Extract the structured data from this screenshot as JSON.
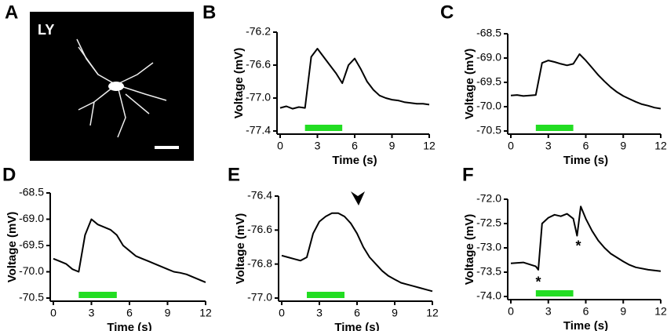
{
  "chart_data": [
    {
      "type": "image",
      "panel": "A",
      "label": "LY"
    },
    {
      "type": "line",
      "panel": "B",
      "xlabel": "Time (s)",
      "ylabel": "Voltage (mV)",
      "x": [
        0,
        0.5,
        1,
        1.5,
        2,
        2.5,
        3,
        3.5,
        4,
        4.5,
        5,
        5.5,
        6,
        6.5,
        7,
        7.5,
        8,
        8.5,
        9,
        9.5,
        10,
        10.5,
        11,
        11.5,
        12
      ],
      "series": [
        {
          "color": "#000000",
          "values": [
            -77.12,
            -77.1,
            -77.13,
            -77.11,
            -77.12,
            -76.5,
            -76.4,
            -76.5,
            -76.6,
            -76.7,
            -76.82,
            -76.6,
            -76.52,
            -76.65,
            -76.8,
            -76.9,
            -76.97,
            -77.0,
            -77.02,
            -77.03,
            -77.05,
            -77.06,
            -77.07,
            -77.07,
            -77.08
          ]
        }
      ],
      "xlim": [
        0,
        12
      ],
      "xticks": [
        0,
        3,
        6,
        9,
        12
      ],
      "ylim": [
        -77.4,
        -76.2
      ],
      "yticks": [
        -77.4,
        {
          "value": -77,
          "label": "-77.0"
        },
        -76.6,
        -76.2
      ],
      "stimulus": {
        "x": [
          2,
          5
        ],
        "color": "#22dd22"
      }
    },
    {
      "type": "line",
      "panel": "C",
      "xlabel": "Time (s)",
      "ylabel": "Voltage (mV)",
      "x": [
        0,
        0.5,
        1,
        1.5,
        2,
        2.5,
        3,
        3.5,
        4,
        4.5,
        5,
        5.5,
        6,
        6.5,
        7,
        7.5,
        8,
        8.5,
        9,
        9.5,
        10,
        10.5,
        11,
        11.5,
        12
      ],
      "series": [
        {
          "color": "#000000",
          "values": [
            -69.77,
            -69.76,
            -69.78,
            -69.77,
            -69.76,
            -69.1,
            -69.05,
            -69.08,
            -69.12,
            -69.15,
            -69.12,
            -68.92,
            -69.05,
            -69.2,
            -69.35,
            -69.48,
            -69.6,
            -69.7,
            -69.78,
            -69.84,
            -69.9,
            -69.95,
            -69.98,
            -70.02,
            -70.04
          ]
        }
      ],
      "xlim": [
        0,
        12
      ],
      "xticks": [
        0,
        3,
        6,
        9,
        12
      ],
      "ylim": [
        -70.5,
        -68.5
      ],
      "yticks": [
        -70.5,
        {
          "value": -70,
          "label": "-70.0"
        },
        -69.5,
        {
          "value": -69,
          "label": "-69.0"
        },
        -68.5
      ],
      "stimulus": {
        "x": [
          2,
          5
        ],
        "color": "#22dd22"
      }
    },
    {
      "type": "line",
      "panel": "D",
      "xlabel": "Time (s)",
      "ylabel": "Voltage (mV)",
      "x": [
        0,
        0.5,
        1,
        1.5,
        2,
        2.5,
        3,
        3.5,
        4,
        4.5,
        5,
        5.5,
        6,
        6.5,
        7,
        7.5,
        8,
        8.5,
        9,
        9.5,
        10,
        10.5,
        11,
        11.5,
        12
      ],
      "series": [
        {
          "color": "#000000",
          "values": [
            -69.75,
            -69.8,
            -69.85,
            -69.95,
            -70.0,
            -69.3,
            -69.0,
            -69.1,
            -69.15,
            -69.2,
            -69.3,
            -69.5,
            -69.6,
            -69.7,
            -69.75,
            -69.8,
            -69.85,
            -69.9,
            -69.95,
            -70.0,
            -70.02,
            -70.05,
            -70.1,
            -70.15,
            -70.2
          ]
        }
      ],
      "xlim": [
        0,
        12
      ],
      "xticks": [
        0,
        3,
        6,
        9,
        12
      ],
      "ylim": [
        -70.5,
        -68.5
      ],
      "yticks": [
        -70.5,
        {
          "value": -70,
          "label": "-70.0"
        },
        -69.5,
        {
          "value": -69,
          "label": "-69.0"
        },
        -68.5
      ],
      "stimulus": {
        "x": [
          2,
          5
        ],
        "color": "#22dd22"
      }
    },
    {
      "type": "line",
      "panel": "E",
      "xlabel": "Time (s)",
      "ylabel": "Voltage (mV)",
      "x": [
        0,
        0.5,
        1,
        1.5,
        2,
        2.5,
        3,
        3.5,
        4,
        4.5,
        5,
        5.5,
        6,
        6.5,
        7,
        7.5,
        8,
        8.5,
        9,
        9.5,
        10,
        10.5,
        11,
        11.5,
        12
      ],
      "series": [
        {
          "color": "#000000",
          "values": [
            -76.75,
            -76.76,
            -76.77,
            -76.78,
            -76.76,
            -76.62,
            -76.55,
            -76.52,
            -76.5,
            -76.5,
            -76.52,
            -76.56,
            -76.62,
            -76.7,
            -76.76,
            -76.8,
            -76.84,
            -76.87,
            -76.89,
            -76.91,
            -76.92,
            -76.93,
            -76.94,
            -76.95,
            -76.96
          ]
        }
      ],
      "xlim": [
        0,
        12
      ],
      "xticks": [
        0,
        3,
        6,
        9,
        12
      ],
      "ylim": [
        -77,
        -76.4
      ],
      "yticks": [
        {
          "value": -77,
          "label": "-77.0"
        },
        -76.8,
        -76.6,
        -76.4
      ],
      "stimulus": {
        "x": [
          2,
          5
        ],
        "color": "#22dd22"
      }
    },
    {
      "type": "line",
      "panel": "F",
      "xlabel": "Time (s)",
      "ylabel": "Voltage (mV)",
      "x": [
        0,
        1,
        2,
        2.2,
        2.5,
        3,
        3.5,
        4,
        4.5,
        5,
        5.3,
        5.6,
        6,
        6.5,
        7,
        7.5,
        8,
        8.5,
        9,
        9.5,
        10,
        11,
        12
      ],
      "series": [
        {
          "color": "#000000",
          "values": [
            -73.32,
            -73.3,
            -73.38,
            -73.45,
            -72.5,
            -72.38,
            -72.32,
            -72.35,
            -72.3,
            -72.4,
            -72.75,
            -72.15,
            -72.4,
            -72.65,
            -72.85,
            -73.0,
            -73.12,
            -73.2,
            -73.28,
            -73.35,
            -73.4,
            -73.45,
            -73.48
          ]
        }
      ],
      "xlim": [
        0,
        12
      ],
      "xticks": [
        0,
        3,
        6,
        9,
        12
      ],
      "ylim": [
        -74,
        -72
      ],
      "yticks": [
        {
          "value": -74,
          "label": "-74.0"
        },
        -73.5,
        {
          "value": -73,
          "label": "-73.0"
        },
        -72.5,
        {
          "value": -72,
          "label": "-72.0"
        }
      ],
      "stimulus": {
        "x": [
          2,
          5
        ],
        "color": "#22dd22"
      },
      "annotations": [
        {
          "text": "*",
          "x": 2.2,
          "y": -73.72
        },
        {
          "text": "*",
          "x": 5.4,
          "y": -72.98
        }
      ]
    }
  ]
}
